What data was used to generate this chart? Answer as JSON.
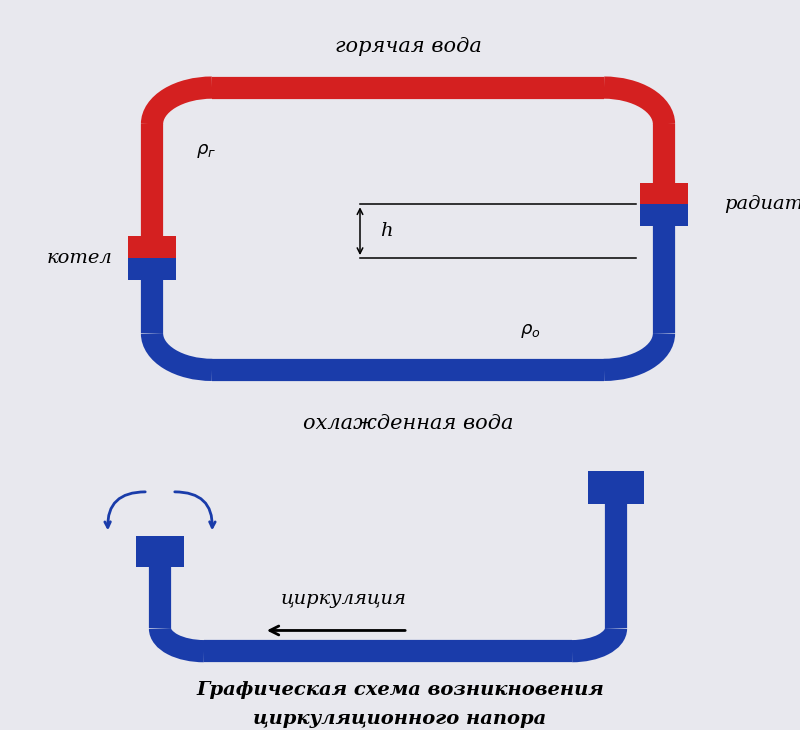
{
  "bg_color": "#e8e8ee",
  "hot_color": "#d42020",
  "cold_color": "#1a3caa",
  "pipe_lw": 16,
  "text_color": "#111111",
  "arrow_color": "#1a3caa",
  "top_label": "горячая вода",
  "bottom_label": "охлажденная вода",
  "left_label": "котел",
  "right_label": "радиаторы",
  "rho_g": "ρг",
  "rho_o": "ρо",
  "h_label": "h",
  "circ_label": "циркуляция",
  "caption_line1": "Графическая схема возникновения",
  "caption_line2": "циркуляционного напора",
  "fig_width": 8.0,
  "fig_height": 7.3
}
